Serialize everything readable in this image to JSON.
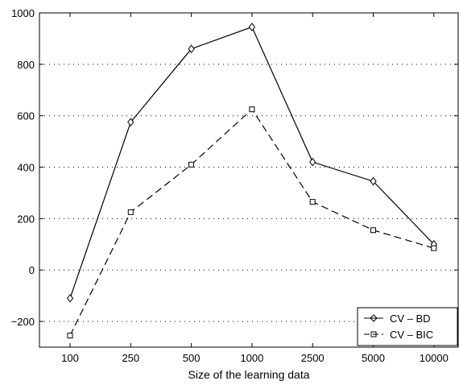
{
  "chart_data": {
    "type": "line",
    "title": "",
    "xlabel": "Size of the learning data",
    "ylabel": "",
    "categories": [
      "100",
      "250",
      "500",
      "1000",
      "2500",
      "5000",
      "10000"
    ],
    "ylim": [
      -300,
      1000
    ],
    "yticks": [
      -200,
      0,
      200,
      400,
      600,
      800,
      1000
    ],
    "ytick_labels": [
      "−200",
      "0",
      "200",
      "400",
      "600",
      "800",
      "1000"
    ],
    "grid": "horizontal dotted",
    "legend_position": "bottom-right",
    "series": [
      {
        "name": "CV – BD",
        "marker": "diamond",
        "line": "solid",
        "color": "#000000",
        "values": [
          -110,
          575,
          860,
          945,
          420,
          345,
          100
        ]
      },
      {
        "name": "CV – BIC",
        "marker": "square",
        "line": "dashed",
        "color": "#000000",
        "values": [
          -255,
          225,
          410,
          625,
          265,
          155,
          85
        ]
      }
    ]
  }
}
